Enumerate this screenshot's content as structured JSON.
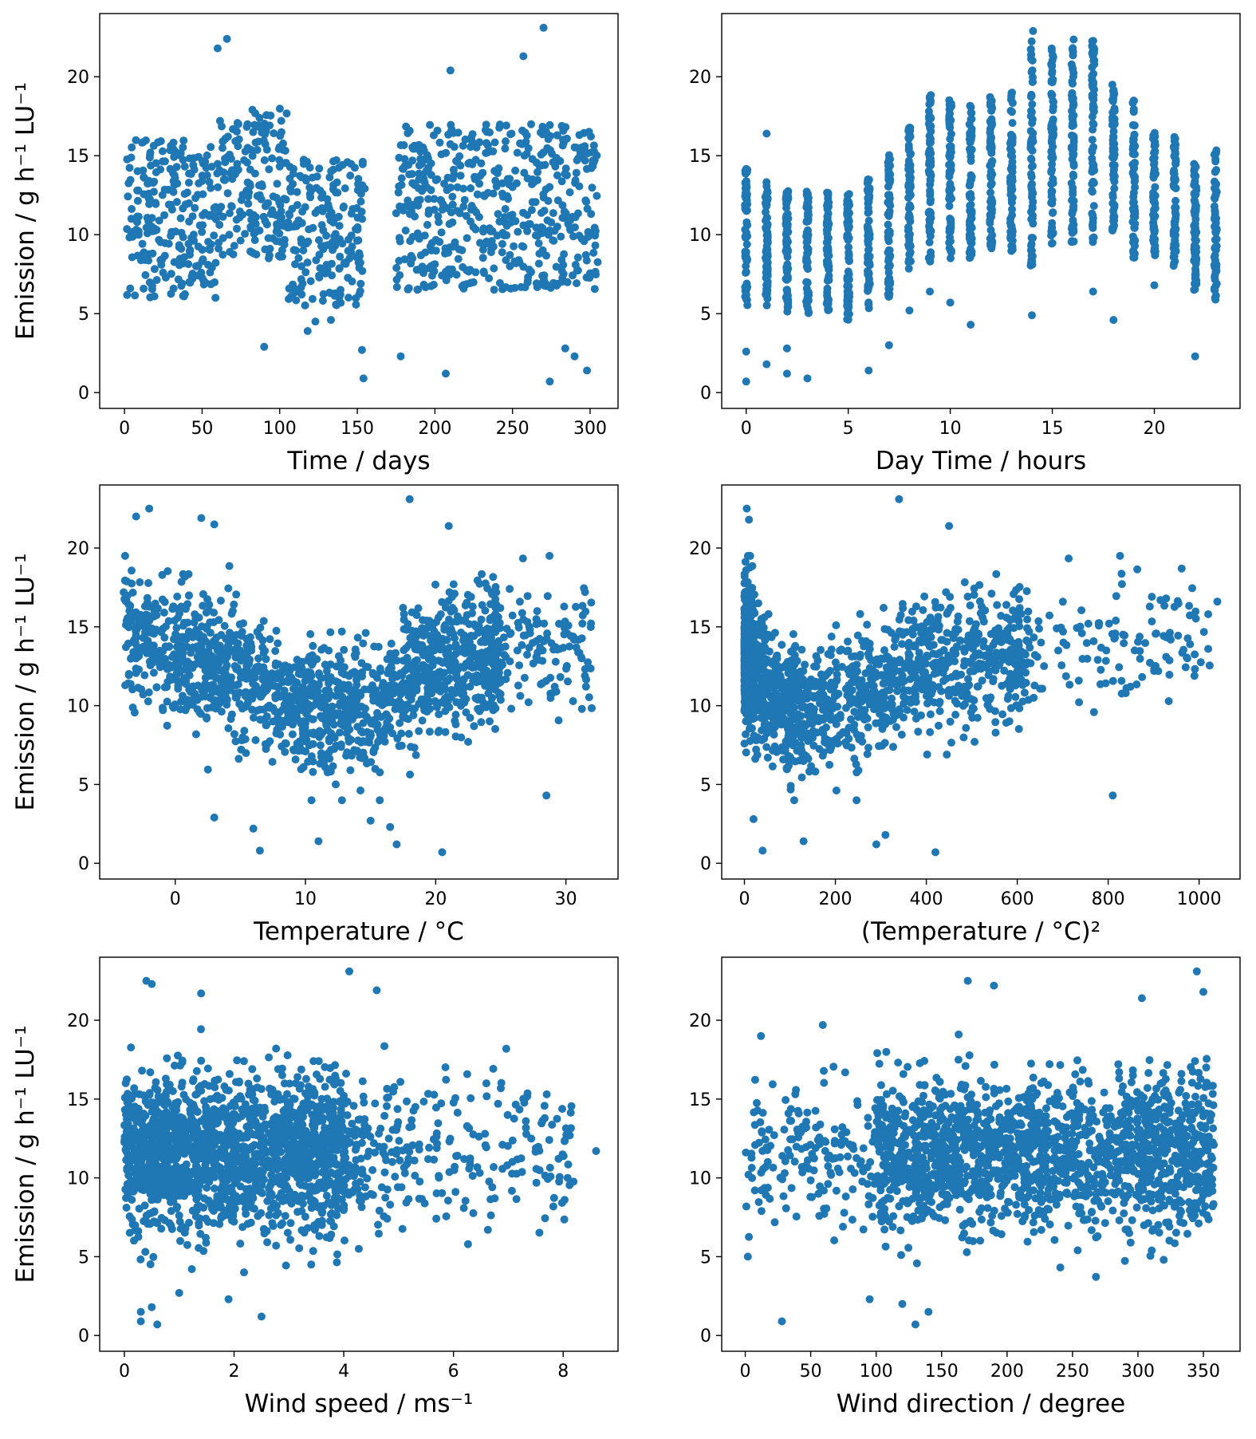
{
  "figure": {
    "point_color": "#1f77b4"
  },
  "chart_data": [
    {
      "type": "scatter",
      "xlabel": "Time / days",
      "ylabel": "Emission / g h⁻¹ LU⁻¹",
      "xlim": [
        -16,
        318
      ],
      "ylim": [
        -1,
        24
      ],
      "xticks": [
        0,
        50,
        100,
        150,
        200,
        250,
        300
      ],
      "yticks": [
        0,
        5,
        10,
        15,
        20
      ],
      "clusters": [
        {
          "x": [
            0,
            60
          ],
          "y": [
            6,
            16
          ]
        },
        {
          "x": [
            60,
            105
          ],
          "y": [
            8.5,
            18
          ]
        },
        {
          "x": [
            105,
            155
          ],
          "y": [
            5.5,
            15
          ]
        },
        {
          "x": [
            175,
            305
          ],
          "y": [
            6.5,
            17
          ]
        }
      ],
      "outliers": [
        [
          66,
          22.4
        ],
        [
          60,
          21.8
        ],
        [
          270,
          23.1
        ],
        [
          257,
          21.3
        ],
        [
          210,
          20.4
        ],
        [
          90,
          2.9
        ],
        [
          154,
          0.9
        ],
        [
          153,
          2.7
        ],
        [
          178,
          2.3
        ],
        [
          207,
          1.2
        ],
        [
          274,
          0.7
        ],
        [
          284,
          2.8
        ],
        [
          298,
          1.4
        ],
        [
          290,
          2.3
        ],
        [
          123,
          4.5
        ],
        [
          133,
          4.6
        ],
        [
          118,
          3.9
        ]
      ]
    },
    {
      "type": "scatter",
      "xlabel": "Day Time / hours",
      "ylabel": "",
      "xlim": [
        -1.2,
        24.2
      ],
      "ylim": [
        -1,
        24
      ],
      "xticks": [
        0,
        5,
        10,
        15,
        20
      ],
      "yticks": [
        0,
        5,
        10,
        15,
        20
      ],
      "x": [
        0,
        1,
        2,
        3,
        4,
        5,
        6,
        7,
        8,
        9,
        10,
        11,
        12,
        13,
        14,
        15,
        16,
        17,
        18,
        19,
        20,
        21,
        22,
        23
      ],
      "y_range": [
        [
          5.5,
          14.2
        ],
        [
          5.5,
          13.5
        ],
        [
          5,
          13
        ],
        [
          5,
          12.8
        ],
        [
          5.2,
          12.7
        ],
        [
          4.5,
          12.6
        ],
        [
          5.3,
          13.8
        ],
        [
          5.8,
          15.1
        ],
        [
          7.8,
          16.8
        ],
        [
          8,
          18.9
        ],
        [
          8.5,
          18.8
        ],
        [
          8.5,
          18.2
        ],
        [
          9,
          19
        ],
        [
          8.5,
          19
        ],
        [
          8,
          23.1
        ],
        [
          9,
          22
        ],
        [
          9.5,
          22.5
        ],
        [
          9.5,
          22.3
        ],
        [
          10,
          19.5
        ],
        [
          8.5,
          18.5
        ],
        [
          8.5,
          16.5
        ],
        [
          8,
          16.2
        ],
        [
          6.5,
          14.5
        ],
        [
          5.5,
          15.5
        ]
      ],
      "outliers": [
        [
          0,
          0.7
        ],
        [
          1,
          1.8
        ],
        [
          2,
          1.2
        ],
        [
          3,
          0.9
        ],
        [
          6,
          1.4
        ],
        [
          7,
          3
        ],
        [
          8,
          5.2
        ],
        [
          9,
          6.4
        ],
        [
          10,
          5.7
        ],
        [
          11,
          4.3
        ],
        [
          14,
          4.9
        ],
        [
          17,
          6.4
        ],
        [
          18,
          4.6
        ],
        [
          22,
          2.3
        ],
        [
          20,
          6.8
        ],
        [
          1,
          16.4
        ],
        [
          2,
          2.8
        ],
        [
          0,
          2.6
        ]
      ]
    },
    {
      "type": "scatter",
      "xlabel": "Temperature / °C",
      "ylabel": "Emission / g h⁻¹ LU⁻¹",
      "xlim": [
        -5.8,
        34
      ],
      "ylim": [
        -1,
        24
      ],
      "xticks": [
        0,
        10,
        20,
        30
      ],
      "yticks": [
        0,
        5,
        10,
        15,
        20
      ],
      "trend": [
        [
          -4,
          15
        ],
        [
          0,
          13.5
        ],
        [
          5,
          12
        ],
        [
          10,
          9.5
        ],
        [
          15,
          10
        ],
        [
          20,
          12.5
        ],
        [
          25,
          13.5
        ],
        [
          32,
          14
        ]
      ],
      "outliers": [
        [
          -2,
          22.5
        ],
        [
          -3,
          22
        ],
        [
          2,
          21.9
        ],
        [
          3,
          21.5
        ],
        [
          18,
          23.1
        ],
        [
          21,
          21.4
        ],
        [
          20.5,
          0.7
        ],
        [
          6.5,
          0.8
        ],
        [
          17,
          1.2
        ],
        [
          11,
          1.4
        ],
        [
          6,
          2.2
        ],
        [
          3,
          2.9
        ],
        [
          28.5,
          4.3
        ],
        [
          15,
          2.7
        ],
        [
          16.5,
          2.3
        ]
      ]
    },
    {
      "type": "scatter",
      "xlabel": "(Temperature / °C)²",
      "ylabel": "",
      "xlim": [
        -50,
        1090
      ],
      "ylim": [
        -1,
        24
      ],
      "xticks": [
        0,
        200,
        400,
        600,
        800,
        1000
      ],
      "yticks": [
        0,
        5,
        10,
        15,
        20
      ],
      "outliers": [
        [
          5,
          22.5
        ],
        [
          10,
          21.8
        ],
        [
          340,
          23.1
        ],
        [
          450,
          21.4
        ],
        [
          420,
          0.7
        ],
        [
          40,
          0.8
        ],
        [
          290,
          1.2
        ],
        [
          130,
          1.4
        ],
        [
          810,
          4.3
        ],
        [
          20,
          2.8
        ],
        [
          310,
          1.8
        ],
        [
          1040,
          16.6
        ],
        [
          1020,
          15.8
        ],
        [
          1020,
          13.6
        ],
        [
          980,
          13.9
        ],
        [
          910,
          12.2
        ],
        [
          915,
          16.7
        ]
      ]
    },
    {
      "type": "scatter",
      "xlabel": "Wind speed / ms⁻¹",
      "ylabel": "Emission / g h⁻¹ LU⁻¹",
      "xlim": [
        -0.45,
        9.0
      ],
      "ylim": [
        -1,
        24
      ],
      "xticks": [
        0,
        2,
        4,
        6,
        8
      ],
      "yticks": [
        0,
        5,
        10,
        15,
        20
      ],
      "outliers": [
        [
          4.1,
          23.1
        ],
        [
          0.4,
          22.5
        ],
        [
          0.5,
          22.3
        ],
        [
          4.6,
          21.9
        ],
        [
          1.4,
          21.7
        ],
        [
          0.3,
          0.9
        ],
        [
          0.6,
          0.7
        ],
        [
          2.5,
          1.2
        ],
        [
          0.3,
          1.5
        ],
        [
          0.5,
          1.8
        ],
        [
          8.6,
          11.7
        ],
        [
          8.1,
          12.8
        ],
        [
          7.7,
          15.3
        ],
        [
          6.6,
          16
        ],
        [
          7.3,
          15
        ],
        [
          1.9,
          2.3
        ],
        [
          1.0,
          2.7
        ]
      ]
    },
    {
      "type": "scatter",
      "xlabel": "Wind direction / degree",
      "ylabel": "",
      "xlim": [
        -18,
        378
      ],
      "ylim": [
        -1,
        24
      ],
      "xticks": [
        0,
        50,
        100,
        150,
        200,
        250,
        300,
        350
      ],
      "yticks": [
        0,
        5,
        10,
        15,
        20
      ],
      "outliers": [
        [
          28,
          0.9
        ],
        [
          130,
          0.7
        ],
        [
          345,
          23.1
        ],
        [
          170,
          22.5
        ],
        [
          190,
          22.2
        ],
        [
          303,
          21.4
        ],
        [
          350,
          21.8
        ],
        [
          12,
          19
        ],
        [
          2,
          5
        ],
        [
          140,
          1.5
        ],
        [
          120,
          2
        ],
        [
          95,
          2.3
        ]
      ]
    }
  ]
}
